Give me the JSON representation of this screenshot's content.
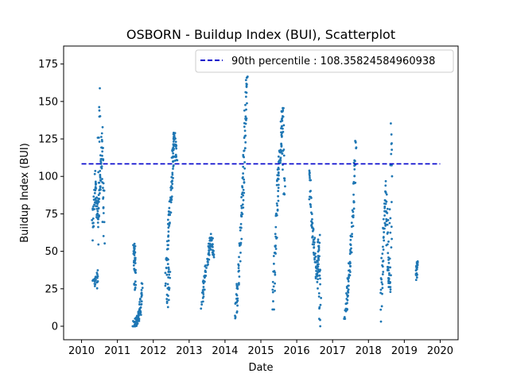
{
  "chart_data": {
    "type": "scatter",
    "title": "OSBORN - Buildup Index (BUI), Scatterplot",
    "xlabel": "Date",
    "ylabel": "Buildup Index (BUI)",
    "xlim": [
      2009.5,
      2020.5
    ],
    "ylim": [
      -9,
      187
    ],
    "xticks": [
      2010,
      2011,
      2012,
      2013,
      2014,
      2015,
      2016,
      2017,
      2018,
      2019,
      2020
    ],
    "yticks": [
      0,
      25,
      50,
      75,
      100,
      125,
      150,
      175
    ],
    "grid": false,
    "legend": {
      "placement": "top-right",
      "entries": [
        {
          "label": "90th percentile : 108.35824584960938"
        }
      ]
    },
    "colors": {
      "points": "#1f77b4",
      "threshold_line": "#0000cc"
    },
    "threshold": {
      "value": 108.35824584960938,
      "x_start": 2010.0,
      "x_end": 2020.0,
      "style": "dashed"
    },
    "point_series": [
      {
        "year": 2010,
        "segments": [
          [
            2010.3,
            60
          ],
          [
            2010.38,
            100
          ],
          [
            2010.45,
            70
          ],
          [
            2010.52,
            95
          ],
          [
            2010.58,
            125
          ],
          [
            2010.62,
            60
          ]
        ]
      },
      {
        "year": 2010,
        "segments": [
          [
            2010.33,
            28
          ],
          [
            2010.45,
            32
          ],
          [
            2010.5,
            155
          ]
        ]
      },
      {
        "year": 2011,
        "segments": [
          [
            2011.45,
            0
          ],
          [
            2011.52,
            3
          ],
          [
            2011.58,
            6
          ],
          [
            2011.63,
            10
          ],
          [
            2011.68,
            28
          ]
        ]
      },
      {
        "year": 2011,
        "segments": [
          [
            2011.47,
            56
          ],
          [
            2011.48,
            44
          ],
          [
            2011.49,
            24
          ]
        ]
      },
      {
        "year": 2012,
        "segments": [
          [
            2012.35,
            30
          ],
          [
            2012.42,
            65
          ],
          [
            2012.5,
            90
          ],
          [
            2012.55,
            115
          ],
          [
            2012.6,
            128
          ],
          [
            2012.65,
            110
          ]
        ]
      },
      {
        "year": 2012,
        "segments": [
          [
            2012.4,
            15
          ],
          [
            2012.45,
            40
          ]
        ]
      },
      {
        "year": 2013,
        "segments": [
          [
            2013.35,
            15
          ],
          [
            2013.45,
            35
          ],
          [
            2013.55,
            50
          ],
          [
            2013.62,
            60
          ],
          [
            2013.68,
            45
          ]
        ]
      },
      {
        "year": 2014,
        "segments": [
          [
            2014.3,
            7
          ],
          [
            2014.37,
            30
          ],
          [
            2014.45,
            70
          ],
          [
            2014.52,
            100
          ],
          [
            2014.57,
            140
          ],
          [
            2014.62,
            178
          ]
        ]
      },
      {
        "year": 2015,
        "segments": [
          [
            2015.35,
            16
          ],
          [
            2015.42,
            60
          ],
          [
            2015.48,
            100
          ],
          [
            2015.55,
            120
          ],
          [
            2015.6,
            147
          ],
          [
            2015.65,
            80
          ]
        ]
      },
      {
        "year": 2016,
        "segments": [
          [
            2016.35,
            105
          ],
          [
            2016.42,
            70
          ],
          [
            2016.5,
            50
          ],
          [
            2016.57,
            30
          ],
          [
            2016.62,
            58
          ],
          [
            2016.66,
            2
          ]
        ]
      },
      {
        "year": 2017,
        "segments": [
          [
            2017.35,
            5
          ],
          [
            2017.42,
            25
          ],
          [
            2017.5,
            45
          ],
          [
            2017.58,
            80
          ],
          [
            2017.65,
            126
          ]
        ]
      },
      {
        "year": 2018,
        "segments": [
          [
            2018.35,
            8
          ],
          [
            2018.42,
            60
          ],
          [
            2018.5,
            90
          ],
          [
            2018.55,
            40
          ],
          [
            2018.6,
            25
          ],
          [
            2018.65,
            134
          ]
        ]
      },
      {
        "year": 2019,
        "segments": [
          [
            2019.35,
            33
          ],
          [
            2019.36,
            42
          ]
        ]
      }
    ]
  }
}
